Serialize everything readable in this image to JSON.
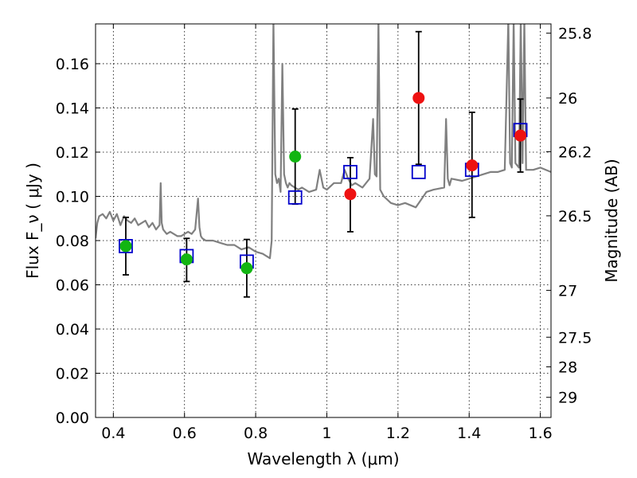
{
  "chart_data": {
    "type": "scatter",
    "title": "",
    "xlabel": "Wavelength  λ (μm)",
    "ylabel": "Flux  F_ν  ( μJy )",
    "ylabel_right": "Magnitude (AB)",
    "xlim": [
      0.35,
      1.63
    ],
    "ylim": [
      0.0,
      0.178
    ],
    "grid": true,
    "grid_style": "dotted",
    "x_ticks": [
      0.4,
      0.6,
      0.8,
      1.0,
      1.2,
      1.4,
      1.6
    ],
    "x_tick_labels": [
      "0.4",
      "0.6",
      "0.8",
      "1",
      "1.2",
      "1.4",
      "1.6"
    ],
    "y_ticks": [
      0.0,
      0.02,
      0.04,
      0.06,
      0.08,
      0.1,
      0.12,
      0.14,
      0.16
    ],
    "y_tick_labels": [
      "0.00",
      "0.02",
      "0.04",
      "0.06",
      "0.08",
      "0.10",
      "0.12",
      "0.14",
      "0.16"
    ],
    "right_axis_ticks": [
      {
        "label": "25.8",
        "flux": 0.1738
      },
      {
        "label": "26",
        "flux": 0.1445
      },
      {
        "label": "26.2",
        "flux": 0.1202
      },
      {
        "label": "26.5",
        "flux": 0.0912
      },
      {
        "label": "27",
        "flux": 0.0575
      },
      {
        "label": "27.5",
        "flux": 0.0363
      },
      {
        "label": "28",
        "flux": 0.0229
      },
      {
        "label": "29",
        "flux": 0.0091
      }
    ],
    "colors": {
      "model_spectrum": "#808080",
      "model_photometry": "#0000cc",
      "observed_green": "#12b512",
      "observed_red": "#ee1111",
      "error_bars": "#000000"
    },
    "series": [
      {
        "role": "model-spectrum",
        "style": "line",
        "x": [
          0.35,
          0.355,
          0.36,
          0.37,
          0.38,
          0.39,
          0.4,
          0.41,
          0.42,
          0.43,
          0.44,
          0.45,
          0.46,
          0.47,
          0.48,
          0.49,
          0.5,
          0.51,
          0.52,
          0.53,
          0.533,
          0.536,
          0.54,
          0.55,
          0.56,
          0.57,
          0.58,
          0.59,
          0.6,
          0.61,
          0.62,
          0.63,
          0.638,
          0.642,
          0.646,
          0.65,
          0.66,
          0.68,
          0.7,
          0.72,
          0.74,
          0.76,
          0.78,
          0.8,
          0.82,
          0.84,
          0.845,
          0.85,
          0.855,
          0.86,
          0.865,
          0.87,
          0.875,
          0.88,
          0.885,
          0.89,
          0.895,
          0.9,
          0.91,
          0.92,
          0.93,
          0.95,
          0.97,
          0.98,
          0.99,
          1.0,
          1.02,
          1.04,
          1.05,
          1.06,
          1.07,
          1.08,
          1.1,
          1.12,
          1.13,
          1.135,
          1.14,
          1.145,
          1.15,
          1.16,
          1.18,
          1.2,
          1.22,
          1.25,
          1.28,
          1.3,
          1.33,
          1.335,
          1.34,
          1.345,
          1.35,
          1.38,
          1.4,
          1.42,
          1.44,
          1.46,
          1.48,
          1.5,
          1.51,
          1.515,
          1.52,
          1.525,
          1.53,
          1.54,
          1.545,
          1.55,
          1.555,
          1.56,
          1.58,
          1.6,
          1.63
        ],
        "y": [
          0.081,
          0.088,
          0.091,
          0.092,
          0.09,
          0.093,
          0.089,
          0.092,
          0.087,
          0.091,
          0.089,
          0.088,
          0.09,
          0.087,
          0.088,
          0.089,
          0.086,
          0.088,
          0.085,
          0.087,
          0.106,
          0.088,
          0.085,
          0.083,
          0.084,
          0.083,
          0.082,
          0.082,
          0.083,
          0.084,
          0.083,
          0.085,
          0.099,
          0.086,
          0.082,
          0.081,
          0.08,
          0.08,
          0.079,
          0.078,
          0.078,
          0.076,
          0.077,
          0.075,
          0.074,
          0.072,
          0.08,
          0.18,
          0.11,
          0.106,
          0.108,
          0.102,
          0.16,
          0.11,
          0.106,
          0.104,
          0.106,
          0.105,
          0.104,
          0.103,
          0.104,
          0.102,
          0.103,
          0.112,
          0.104,
          0.103,
          0.106,
          0.106,
          0.112,
          0.108,
          0.105,
          0.106,
          0.104,
          0.108,
          0.135,
          0.11,
          0.109,
          0.18,
          0.103,
          0.1,
          0.097,
          0.096,
          0.097,
          0.095,
          0.102,
          0.103,
          0.104,
          0.135,
          0.108,
          0.105,
          0.108,
          0.107,
          0.108,
          0.109,
          0.11,
          0.111,
          0.111,
          0.112,
          0.18,
          0.115,
          0.113,
          0.18,
          0.115,
          0.113,
          0.18,
          0.115,
          0.18,
          0.112,
          0.112,
          0.113,
          0.111
        ]
      },
      {
        "role": "model-photometry",
        "style": "open-square",
        "x": [
          0.435,
          0.606,
          0.775,
          0.911,
          1.066,
          1.258,
          1.408,
          1.544
        ],
        "y": [
          0.0775,
          0.073,
          0.0705,
          0.0995,
          0.111,
          0.111,
          0.112,
          0.13
        ]
      },
      {
        "role": "observed-green",
        "style": "filled-circle",
        "x": [
          0.435,
          0.606,
          0.775,
          0.911
        ],
        "y": [
          0.0775,
          0.0715,
          0.0675,
          0.118
        ],
        "err_low": [
          0.0645,
          0.0615,
          0.0545,
          0.0965
        ],
        "err_high": [
          0.0905,
          0.081,
          0.0805,
          0.1395
        ]
      },
      {
        "role": "observed-red",
        "style": "filled-circle",
        "x": [
          1.066,
          1.258,
          1.408,
          1.544
        ],
        "y": [
          0.101,
          0.1445,
          0.114,
          0.1275
        ],
        "err_low": [
          0.084,
          0.1145,
          0.0905,
          0.111
        ],
        "err_high": [
          0.1175,
          0.1745,
          0.138,
          0.144
        ]
      }
    ]
  }
}
